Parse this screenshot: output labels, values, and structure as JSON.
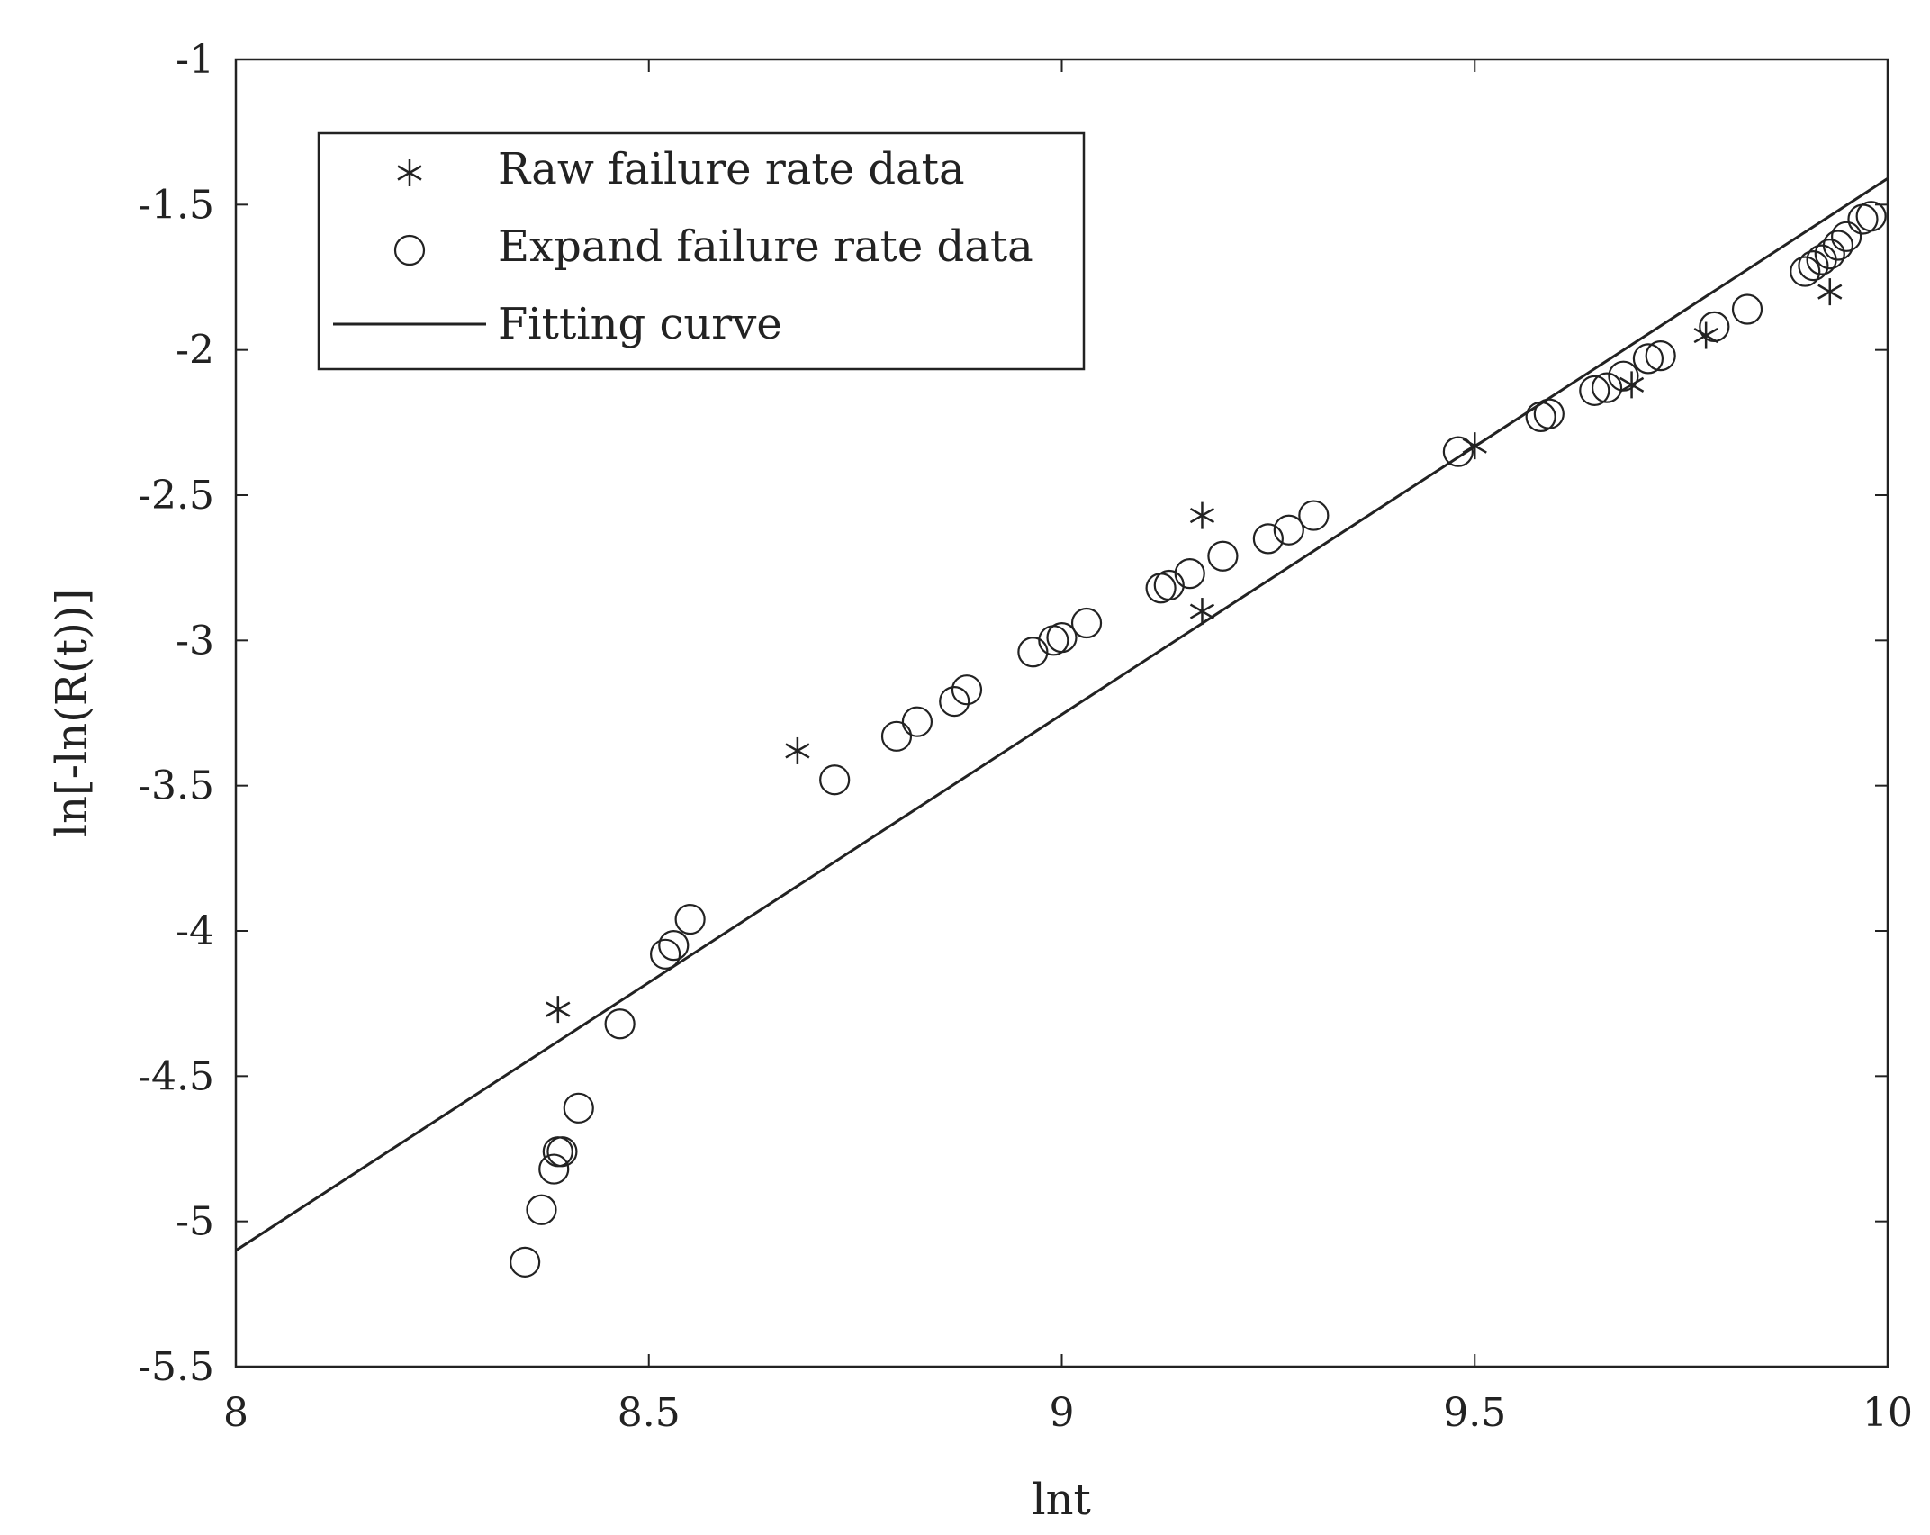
{
  "chart_data": {
    "type": "scatter",
    "title": "",
    "xlabel": "lnt",
    "ylabel": "ln[-ln(R(t))]",
    "xlim": [
      8,
      10
    ],
    "ylim": [
      -5.5,
      -1
    ],
    "xticks": [
      8,
      8.5,
      9,
      9.5,
      10
    ],
    "xtick_labels": [
      "8",
      "8.5",
      "9",
      "9.5",
      "10"
    ],
    "yticks": [
      -1,
      -1.5,
      -2,
      -2.5,
      -3,
      -3.5,
      -4,
      -4.5,
      -5,
      -5.5
    ],
    "ytick_labels": [
      "-1",
      "-1.5",
      "-2",
      "-2.5",
      "-3",
      "-3.5",
      "-4",
      "-4.5",
      "-5",
      "-5.5"
    ],
    "grid": false,
    "legend_position": "top-left",
    "colors": {
      "ink": "#222222",
      "background": "#ffffff"
    },
    "series": [
      {
        "name": "Raw failure rate data",
        "marker": "asterisk",
        "x": [
          8.39,
          8.68,
          9.17,
          9.17,
          9.5,
          9.69,
          9.78,
          9.93
        ],
        "y": [
          -4.27,
          -3.38,
          -2.57,
          -2.9,
          -2.33,
          -2.12,
          -1.95,
          -1.8
        ]
      },
      {
        "name": "Expand failure rate data",
        "marker": "circle",
        "x": [
          8.35,
          8.37,
          8.385,
          8.39,
          8.395,
          8.415,
          8.465,
          8.52,
          8.53,
          8.55,
          8.725,
          8.8,
          8.825,
          8.87,
          8.885,
          8.965,
          8.99,
          9.0,
          9.03,
          9.12,
          9.13,
          9.155,
          9.195,
          9.25,
          9.275,
          9.305,
          9.48,
          9.58,
          9.59,
          9.645,
          9.66,
          9.68,
          9.71,
          9.725,
          9.79,
          9.83,
          9.9,
          9.91,
          9.92,
          9.93,
          9.94,
          9.95,
          9.97,
          9.98
        ],
        "y": [
          -5.14,
          -4.96,
          -4.82,
          -4.76,
          -4.76,
          -4.61,
          -4.32,
          -4.08,
          -4.05,
          -3.96,
          -3.48,
          -3.33,
          -3.28,
          -3.21,
          -3.17,
          -3.04,
          -3.0,
          -2.99,
          -2.94,
          -2.82,
          -2.81,
          -2.77,
          -2.71,
          -2.65,
          -2.62,
          -2.57,
          -2.35,
          -2.23,
          -2.22,
          -2.14,
          -2.13,
          -2.09,
          -2.03,
          -2.02,
          -1.92,
          -1.86,
          -1.73,
          -1.71,
          -1.69,
          -1.67,
          -1.64,
          -1.61,
          -1.55,
          -1.54
        ]
      },
      {
        "name": "Fitting curve",
        "marker": "line",
        "x": [
          8,
          10
        ],
        "y": [
          -5.1,
          -1.41
        ]
      }
    ]
  }
}
